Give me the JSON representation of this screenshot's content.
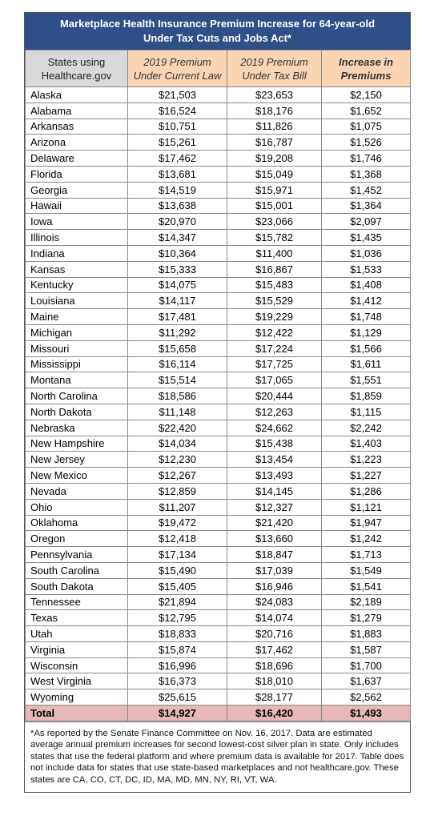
{
  "header": {
    "title": [
      "Marketplace Health Insurance Premium Increase for 64-year-old",
      "Under Tax Cuts and Jobs Act*"
    ]
  },
  "table": {
    "columns": [
      [
        "States using",
        "Healthcare.gov"
      ],
      [
        "2019 Premium",
        "Under Current Law"
      ],
      [
        "2019 Premium",
        "Under Tax Bill"
      ],
      [
        "Increase in",
        "Premiums"
      ]
    ],
    "rows": [
      [
        "Alaska",
        "$21,503",
        "$23,653",
        "$2,150"
      ],
      [
        "Alabama",
        "$16,524",
        "$18,176",
        "$1,652"
      ],
      [
        "Arkansas",
        "$10,751",
        "$11,826",
        "$1,075"
      ],
      [
        "Arizona",
        "$15,261",
        "$16,787",
        "$1,526"
      ],
      [
        "Delaware",
        "$17,462",
        "$19,208",
        "$1,746"
      ],
      [
        "Florida",
        "$13,681",
        "$15,049",
        "$1,368"
      ],
      [
        "Georgia",
        "$14,519",
        "$15,971",
        "$1,452"
      ],
      [
        "Hawaii",
        "$13,638",
        "$15,001",
        "$1,364"
      ],
      [
        "Iowa",
        "$20,970",
        "$23,066",
        "$2,097"
      ],
      [
        "Illinois",
        "$14,347",
        "$15,782",
        "$1,435"
      ],
      [
        "Indiana",
        "$10,364",
        "$11,400",
        "$1,036"
      ],
      [
        "Kansas",
        "$15,333",
        "$16,867",
        "$1,533"
      ],
      [
        "Kentucky",
        "$14,075",
        "$15,483",
        "$1,408"
      ],
      [
        "Louisiana",
        "$14,117",
        "$15,529",
        "$1,412"
      ],
      [
        "Maine",
        "$17,481",
        "$19,229",
        "$1,748"
      ],
      [
        "Michigan",
        "$11,292",
        "$12,422",
        "$1,129"
      ],
      [
        "Missouri",
        "$15,658",
        "$17,224",
        "$1,566"
      ],
      [
        "Mississippi",
        "$16,114",
        "$17,725",
        "$1,611"
      ],
      [
        "Montana",
        "$15,514",
        "$17,065",
        "$1,551"
      ],
      [
        "North Carolina",
        "$18,586",
        "$20,444",
        "$1,859"
      ],
      [
        "North Dakota",
        "$11,148",
        "$12,263",
        "$1,115"
      ],
      [
        "Nebraska",
        "$22,420",
        "$24,662",
        "$2,242"
      ],
      [
        "New Hampshire",
        "$14,034",
        "$15,438",
        "$1,403"
      ],
      [
        "New Jersey",
        "$12,230",
        "$13,454",
        "$1,223"
      ],
      [
        "New Mexico",
        "$12,267",
        "$13,493",
        "$1,227"
      ],
      [
        "Nevada",
        "$12,859",
        "$14,145",
        "$1,286"
      ],
      [
        "Ohio",
        "$11,207",
        "$12,327",
        "$1,121"
      ],
      [
        "Oklahoma",
        "$19,472",
        "$21,420",
        "$1,947"
      ],
      [
        "Oregon",
        "$12,418",
        "$13,660",
        "$1,242"
      ],
      [
        "Pennsylvania",
        "$17,134",
        "$18,847",
        "$1,713"
      ],
      [
        "South Carolina",
        "$15,490",
        "$17,039",
        "$1,549"
      ],
      [
        "South Dakota",
        "$15,405",
        "$16,946",
        "$1,541"
      ],
      [
        "Tennessee",
        "$21,894",
        "$24,083",
        "$2,189"
      ],
      [
        "Texas",
        "$12,795",
        "$14,074",
        "$1,279"
      ],
      [
        "Utah",
        "$18,833",
        "$20,716",
        "$1,883"
      ],
      [
        "Virginia",
        "$15,874",
        "$17,462",
        "$1,587"
      ],
      [
        "Wisconsin",
        "$16,996",
        "$18,696",
        "$1,700"
      ],
      [
        "West Virginia",
        "$16,373",
        "$18,010",
        "$1,637"
      ],
      [
        "Wyoming",
        "$25,615",
        "$28,177",
        "$2,562"
      ]
    ],
    "total": [
      "Total",
      "$14,927",
      "$16,420",
      "$1,493"
    ]
  },
  "footnote": "*As reported by the Senate Finance Committee on Nov. 16, 2017. Data are estimated average annual premium increases for second lowest-cost silver plan in state. Only includes states that use the federal platform and where premium data is available for 2017. Table does not include data for states that use state-based marketplaces and not healthcare.gov. These states are CA, CO, CT, DC, ID, MA, MD, MN, NY, RI, VT, WA."
}
